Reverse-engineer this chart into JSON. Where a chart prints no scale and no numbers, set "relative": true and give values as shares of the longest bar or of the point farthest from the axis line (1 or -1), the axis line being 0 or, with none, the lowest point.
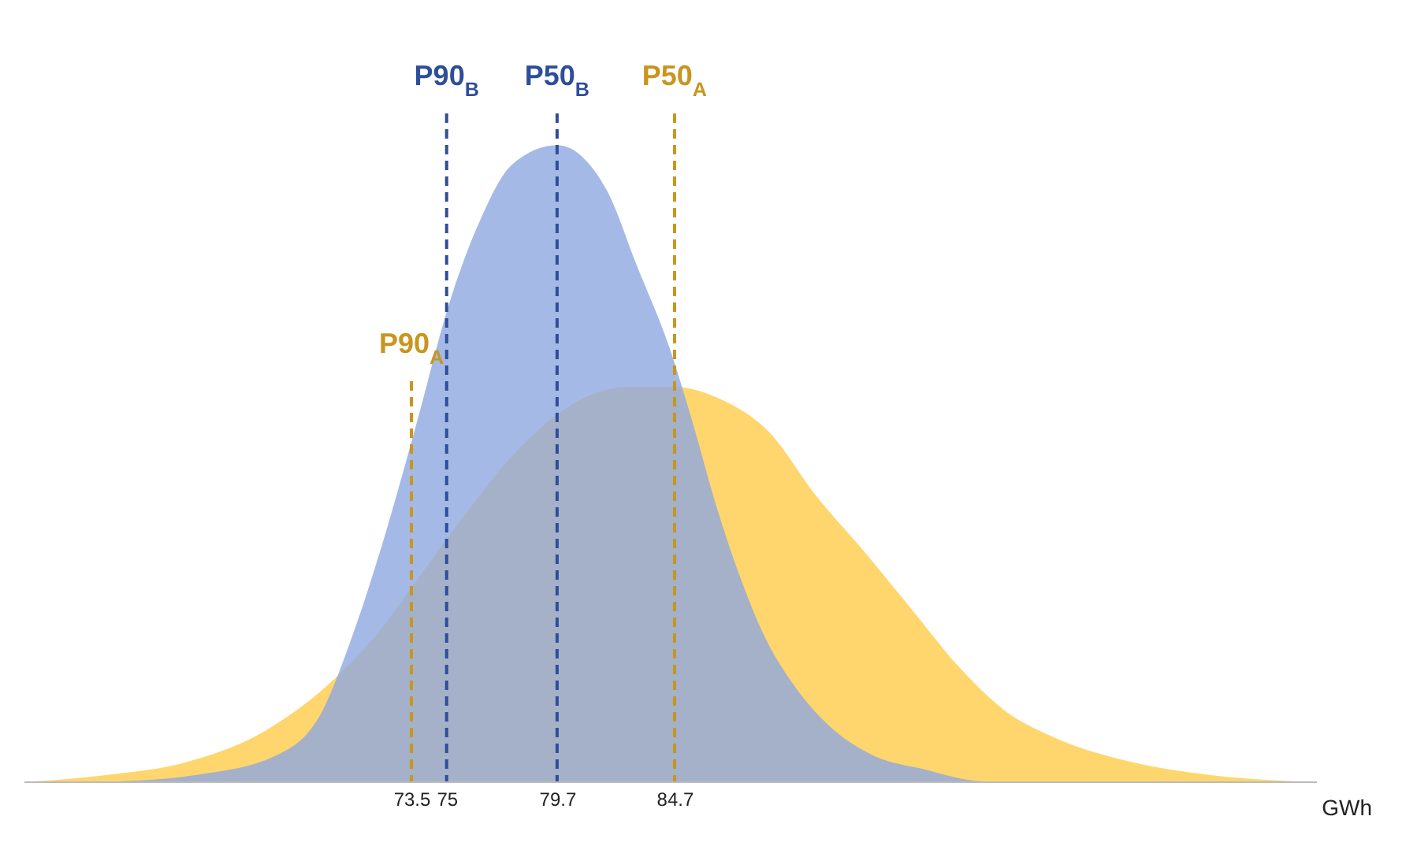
{
  "chart_data": {
    "type": "area",
    "relative": true,
    "xlabel": "GWh",
    "xlim": [
      57,
      112
    ],
    "xticks": [
      73.5,
      75,
      79.7,
      84.7
    ],
    "series": [
      {
        "color": "#ffd66e",
        "x": [
          57.5,
          60.5,
          63.9,
          67.3,
          69.9,
          72.0,
          74.0,
          76.0,
          78.0,
          80.7,
          82.7,
          84.7,
          86.7,
          88.7,
          90.7,
          92.8,
          94.8,
          96.8,
          98.8,
          100.8,
          104.2,
          107.5,
          111.2
        ],
        "values": [
          0,
          0.01,
          0.03,
          0.08,
          0.15,
          0.23,
          0.33,
          0.43,
          0.52,
          0.6,
          0.62,
          0.62,
          0.6,
          0.55,
          0.45,
          0.36,
          0.27,
          0.18,
          0.11,
          0.07,
          0.03,
          0.01,
          0
        ]
      },
      {
        "color": "#8fa8e0",
        "x": [
          61.0,
          64.3,
          67.7,
          69.7,
          71.0,
          72.4,
          73.7,
          75.1,
          76.4,
          77.8,
          79.7,
          81.8,
          83.1,
          84.5,
          85.5,
          86.5,
          87.5,
          88.5,
          89.8,
          91.2,
          93.2,
          95.2,
          97.9,
          100.6
        ],
        "values": [
          0,
          0.01,
          0.04,
          0.11,
          0.23,
          0.39,
          0.56,
          0.75,
          0.88,
          0.97,
          1,
          0.93,
          0.81,
          0.68,
          0.56,
          0.43,
          0.32,
          0.23,
          0.15,
          0.09,
          0.04,
          0.02,
          0,
          0
        ]
      }
    ],
    "ref_lines": [
      {
        "axis": "x",
        "value": 75,
        "label": "P90$_{B}$",
        "color": "#2e4e9a",
        "line_style": "dashed"
      },
      {
        "axis": "x",
        "value": 79.7,
        "label": "P50$_{B}$",
        "color": "#2e4e9a",
        "line_style": "dashed"
      },
      {
        "axis": "x",
        "value": 73.5,
        "label": "P90$_{A}$",
        "color": "#c8961e",
        "line_style": "dashed"
      },
      {
        "axis": "x",
        "value": 84.7,
        "label": "P50$_{A}$",
        "color": "#c8961e",
        "line_style": "dashed"
      }
    ]
  }
}
